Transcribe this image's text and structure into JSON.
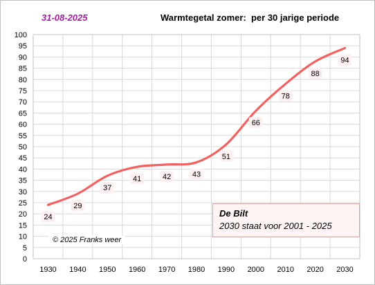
{
  "header": {
    "date": "31-08-2025",
    "title": "Warmtegetal zomer:  per 30 jarige periode"
  },
  "colors": {
    "line": "#f26060",
    "date": "#a020a0",
    "grid": "#d9d9d9",
    "label_bg": "#fdf0f0"
  },
  "info_box": {
    "title": "De Bilt",
    "subtitle": "2030 staat voor 2001 - 2025"
  },
  "copyright": "© 2025 Franks weer",
  "chart_data": {
    "type": "line",
    "title": "Warmtegetal zomer:  per 30 jarige periode",
    "x": [
      1930,
      1940,
      1950,
      1960,
      1970,
      1980,
      1990,
      2000,
      2010,
      2020,
      2030
    ],
    "series": [
      {
        "values": [
          24,
          29,
          37,
          41,
          42,
          43,
          51,
          66,
          78,
          88,
          94
        ]
      }
    ],
    "xlim": [
      1925,
      2035
    ],
    "ylim": [
      0,
      100
    ],
    "yticks": [
      0,
      5,
      10,
      15,
      20,
      25,
      30,
      35,
      40,
      45,
      50,
      55,
      60,
      65,
      70,
      75,
      80,
      85,
      90,
      95,
      100
    ],
    "xticks": [
      1930,
      1940,
      1950,
      1960,
      1970,
      1980,
      1990,
      2000,
      2010,
      2020,
      2030
    ],
    "grid": true,
    "smooth": true,
    "data_labels": true
  }
}
